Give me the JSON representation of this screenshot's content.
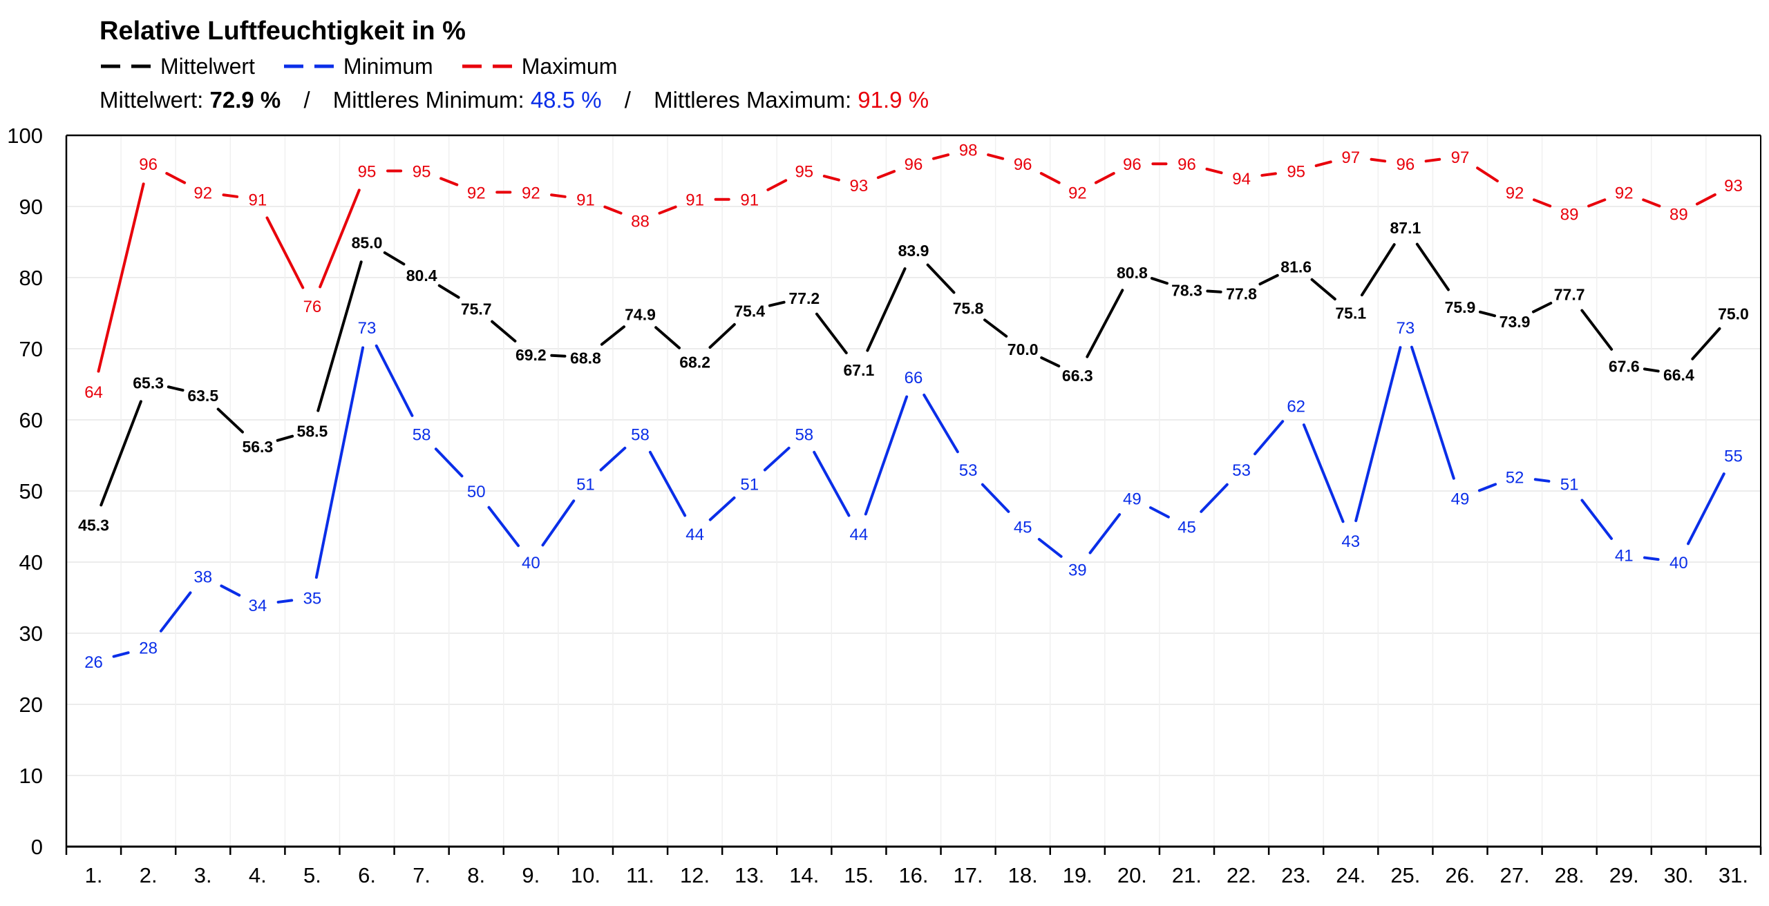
{
  "colors": {
    "mean": "#000000",
    "min": "#0a2ee8",
    "max": "#e8000b",
    "grid": "#e6e6e6"
  },
  "header": {
    "title": "Relative Luftfeuchtigkeit in %",
    "legend": [
      {
        "key": "mean",
        "label": "Mittelwert"
      },
      {
        "key": "min",
        "label": "Minimum"
      },
      {
        "key": "max",
        "label": "Maximum"
      }
    ],
    "summary": {
      "mean_label": "Mittelwert:",
      "mean_value": "72.9 %",
      "sep1": "/",
      "min_label": "Mittleres Minimum:",
      "min_value": "48.5 %",
      "sep2": "/",
      "max_label": "Mittleres Maximum:",
      "max_value": "91.9 %"
    }
  },
  "chart_data": {
    "type": "line",
    "title": "Relative Luftfeuchtigkeit in %",
    "xlabel": "",
    "ylabel": "",
    "categories": [
      "1.",
      "2.",
      "3.",
      "4.",
      "5.",
      "6.",
      "7.",
      "8.",
      "9.",
      "10.",
      "11.",
      "12.",
      "13.",
      "14.",
      "15.",
      "16.",
      "17.",
      "18.",
      "19.",
      "20.",
      "21.",
      "22.",
      "23.",
      "24.",
      "25.",
      "26.",
      "27.",
      "28.",
      "29.",
      "30.",
      "31."
    ],
    "ylim": [
      0,
      100
    ],
    "yticks": [
      0,
      10,
      20,
      30,
      40,
      50,
      60,
      70,
      80,
      90,
      100
    ],
    "grid": true,
    "legend_position": "top-left",
    "series": [
      {
        "name": "Maximum",
        "key": "max",
        "decimals": 0,
        "values": [
          64,
          96,
          92,
          91,
          76,
          95,
          95,
          92,
          92,
          91,
          88,
          91,
          91,
          95,
          93,
          96,
          98,
          96,
          92,
          96,
          96,
          94,
          95,
          97,
          96,
          97,
          92,
          89,
          92,
          89,
          93
        ]
      },
      {
        "name": "Mittelwert",
        "key": "mean",
        "decimals": 1,
        "values": [
          45.3,
          65.3,
          63.5,
          56.3,
          58.5,
          85.0,
          80.4,
          75.7,
          69.2,
          68.8,
          74.9,
          68.2,
          75.4,
          77.2,
          67.1,
          83.9,
          75.8,
          70.0,
          66.3,
          80.8,
          78.3,
          77.8,
          81.6,
          75.1,
          87.1,
          75.9,
          73.9,
          77.7,
          67.6,
          66.4,
          75.0
        ]
      },
      {
        "name": "Minimum",
        "key": "min",
        "decimals": 0,
        "values": [
          26,
          28,
          38,
          34,
          35,
          73,
          58,
          50,
          40,
          51,
          58,
          44,
          51,
          58,
          44,
          66,
          53,
          45,
          39,
          49,
          45,
          53,
          62,
          43,
          73,
          49,
          52,
          51,
          41,
          40,
          55
        ]
      }
    ]
  }
}
